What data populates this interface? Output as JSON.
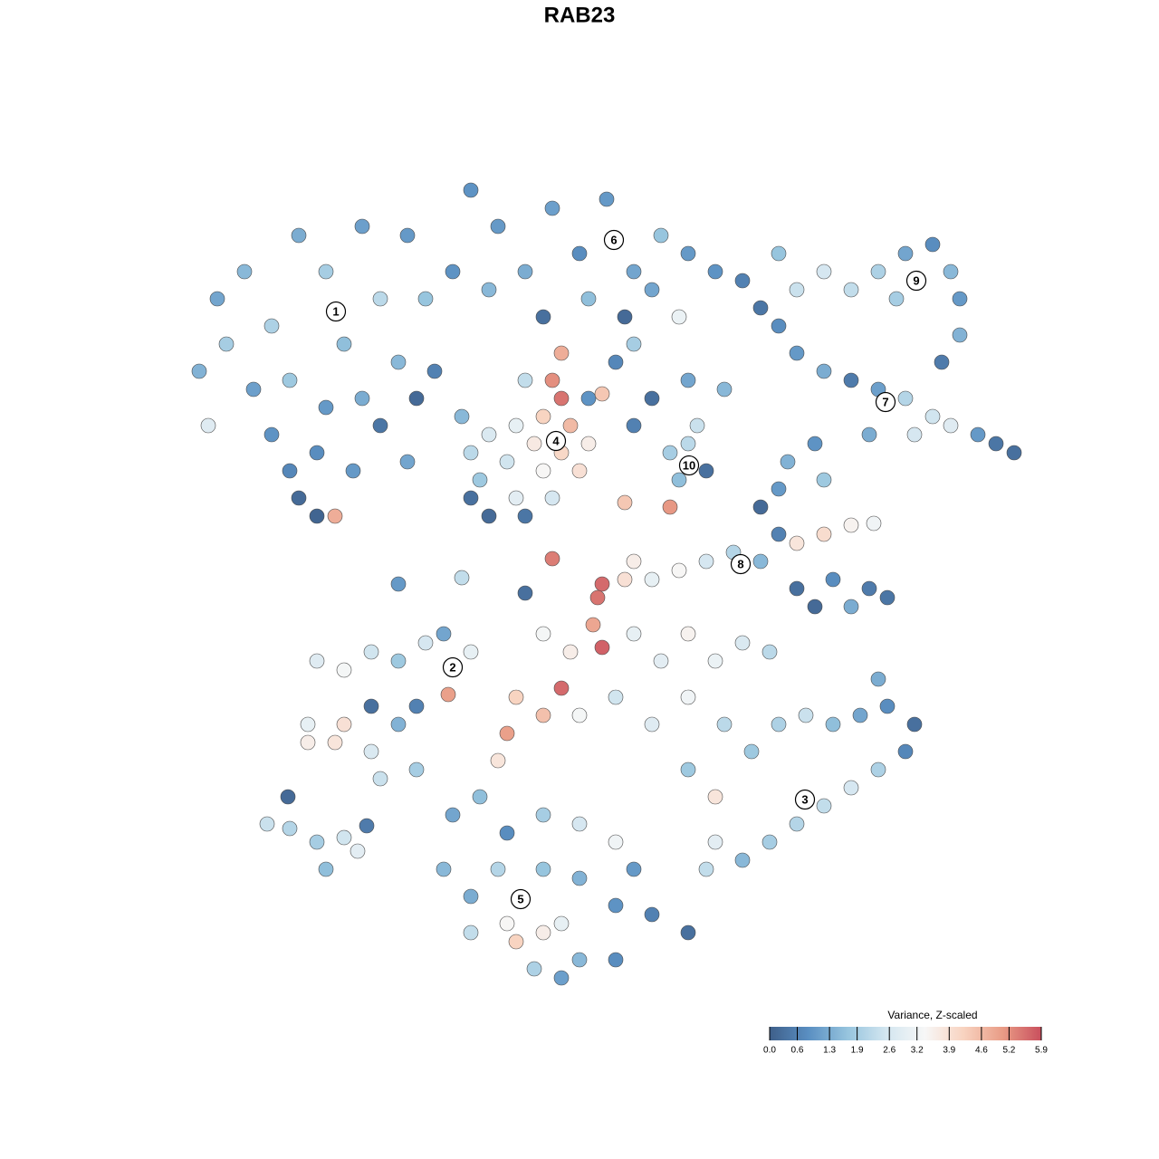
{
  "chart_data": {
    "type": "scatter",
    "title": "RAB23",
    "xlim": [
      0,
      100
    ],
    "ylim": [
      0,
      100
    ],
    "x": [
      7,
      9,
      12,
      15,
      18,
      21,
      23,
      25,
      27,
      30,
      32,
      35,
      13,
      17,
      21,
      25,
      15,
      20,
      24,
      18,
      20,
      22,
      8,
      29,
      33,
      31,
      27,
      17,
      10,
      30,
      37,
      40,
      43,
      46,
      49,
      52,
      55,
      58,
      61,
      64,
      67,
      39,
      45,
      50,
      54,
      57,
      60,
      53,
      55,
      69,
      73,
      76,
      79,
      82,
      85,
      88,
      90,
      91,
      91,
      89,
      84,
      71,
      71,
      73,
      76,
      79,
      82,
      85,
      88,
      90,
      93,
      95,
      97,
      86,
      81,
      75,
      72,
      76,
      65,
      61,
      46,
      47,
      45,
      48,
      44,
      47,
      49,
      45,
      42,
      50,
      41,
      39,
      37,
      38,
      42,
      46,
      37,
      39,
      43,
      50,
      51.5,
      36,
      47,
      43,
      59,
      61,
      63,
      60,
      62,
      55,
      57,
      59,
      54,
      55,
      57,
      60,
      63,
      66,
      69,
      71,
      73,
      76,
      79,
      81.5,
      73,
      75,
      77,
      79,
      81,
      83,
      69,
      71,
      54,
      51.5,
      46,
      51,
      50.5,
      43,
      29,
      36,
      45,
      48,
      51.5,
      55,
      58,
      61,
      64,
      67,
      70,
      47,
      45,
      42,
      41,
      40,
      49,
      53,
      57,
      61,
      20,
      23,
      26,
      29,
      32,
      34,
      37,
      34.5,
      19,
      22,
      19,
      23,
      26,
      29,
      31,
      26,
      27,
      31,
      14.5,
      17,
      20,
      23,
      21,
      24.5,
      16.8,
      25.5,
      65,
      68,
      71,
      74,
      77,
      80,
      83,
      86,
      85,
      82,
      79,
      76,
      73,
      70,
      67,
      64,
      64,
      63,
      82,
      61,
      35,
      38,
      41,
      45,
      49,
      53,
      55,
      34,
      37,
      40,
      45,
      49,
      53,
      57,
      61,
      37,
      41,
      42,
      45,
      47,
      44,
      49,
      53,
      47
    ],
    "y": [
      74,
      82,
      85,
      79,
      89,
      85,
      77,
      90,
      82,
      89,
      82,
      85,
      72,
      73,
      70,
      71,
      67,
      65,
      63,
      60,
      58,
      58,
      68,
      75,
      74,
      71,
      68,
      63,
      77,
      64,
      94,
      90,
      85,
      92,
      87,
      93,
      85,
      89,
      87,
      85,
      84,
      83,
      80,
      82,
      80,
      83,
      80,
      75,
      77,
      81,
      83,
      85,
      83,
      85,
      87,
      88,
      85,
      82,
      78,
      75,
      82,
      87,
      79,
      76,
      74,
      73,
      72,
      71,
      69,
      68,
      67,
      66,
      65,
      67,
      67,
      66,
      64,
      62,
      72,
      73,
      73,
      71,
      69,
      68,
      66,
      65,
      63,
      63,
      68,
      66,
      64,
      67,
      65,
      62,
      60,
      60,
      60,
      58,
      58,
      71,
      71.5,
      69,
      76,
      73,
      65,
      66,
      63,
      62,
      68,
      68,
      71,
      59,
      51,
      53,
      51,
      52,
      53,
      54,
      53,
      56,
      55,
      56,
      57,
      57.2,
      50,
      48,
      51,
      48,
      50,
      49,
      59,
      61,
      59.5,
      50.5,
      53.3,
      49,
      46,
      49.5,
      50.5,
      51.2,
      45,
      43,
      43.5,
      45,
      42,
      45,
      42,
      44,
      43,
      39,
      36,
      38,
      34,
      31,
      36,
      38,
      35,
      38,
      42,
      41,
      43,
      42,
      44,
      45,
      43,
      38.3,
      35,
      33,
      33,
      35,
      32,
      35,
      37,
      37,
      29,
      30,
      24,
      23.5,
      22,
      22.5,
      19,
      21,
      27,
      23.8,
      35,
      32,
      35,
      36,
      35,
      36,
      37,
      35,
      32,
      30,
      28,
      26,
      24,
      22,
      20,
      22,
      27,
      19,
      40,
      30,
      25,
      27,
      23,
      25,
      24,
      22,
      19,
      19,
      16,
      19,
      19,
      18,
      15,
      14,
      12,
      12,
      13,
      11,
      12,
      13,
      8,
      9,
      9,
      7
    ],
    "values": [
      1.4,
      1.2,
      1.5,
      2.0,
      1.3,
      1.9,
      1.6,
      1.1,
      2.2,
      1.0,
      1.7,
      0.9,
      1.1,
      1.8,
      1.0,
      1.3,
      0.9,
      0.8,
      1.0,
      0.2,
      0.1,
      4.8,
      2.8,
      1.5,
      0.6,
      0.2,
      0.4,
      0.7,
      1.9,
      1.2,
      0.9,
      1.0,
      1.3,
      1.1,
      0.8,
      1.0,
      1.2,
      1.7,
      1.0,
      0.9,
      0.6,
      1.5,
      0.3,
      1.6,
      0.2,
      1.2,
      3.1,
      0.7,
      1.9,
      0.4,
      2.4,
      2.6,
      2.3,
      2.0,
      1.2,
      0.8,
      1.5,
      1.0,
      1.4,
      0.5,
      1.9,
      1.7,
      0.8,
      1.0,
      1.3,
      0.5,
      1.1,
      2.1,
      2.5,
      2.8,
      1.0,
      0.4,
      0.3,
      2.6,
      1.3,
      0.9,
      1.4,
      1.8,
      1.5,
      1.2,
      5.2,
      5.5,
      4.2,
      4.6,
      3.7,
      4.1,
      3.9,
      3.4,
      3.0,
      3.6,
      2.5,
      2.7,
      2.2,
      1.8,
      2.9,
      2.6,
      0.3,
      0.2,
      0.4,
      0.9,
      4.4,
      1.5,
      4.8,
      2.3,
      1.9,
      2.2,
      0.3,
      1.6,
      2.4,
      0.6,
      0.3,
      5.1,
      3.9,
      3.6,
      3.0,
      3.4,
      2.6,
      2.1,
      1.5,
      0.6,
      3.8,
      4.0,
      3.5,
      3.2,
      0.3,
      0.2,
      0.8,
      1.3,
      0.5,
      0.4,
      0.2,
      1.0,
      4.4,
      5.6,
      5.4,
      5.5,
      4.9,
      0.3,
      1.0,
      2.3,
      3.3,
      3.6,
      5.7,
      3.0,
      2.9,
      3.5,
      3.1,
      2.7,
      2.2,
      5.6,
      4.5,
      4.2,
      5.0,
      3.8,
      3.3,
      2.5,
      2.8,
      3.2,
      2.8,
      3.3,
      2.5,
      1.8,
      2.6,
      1.2,
      3.0,
      5.0,
      3.0,
      3.8,
      3.6,
      3.9,
      2.7,
      1.4,
      0.6,
      0.3,
      2.4,
      1.9,
      2.4,
      2.1,
      1.9,
      2.5,
      1.6,
      2.9,
      0.2,
      0.5,
      2.2,
      1.8,
      2.0,
      2.4,
      1.6,
      1.2,
      0.8,
      0.3,
      0.7,
      2.0,
      2.6,
      2.3,
      2.1,
      1.9,
      1.5,
      2.9,
      3.8,
      2.3,
      1.3,
      1.8,
      1.2,
      1.6,
      0.8,
      1.9,
      2.6,
      3.2,
      1.0,
      1.5,
      1.3,
      2.1,
      1.7,
      1.4,
      0.9,
      0.6,
      0.3,
      2.3,
      3.4,
      4.2,
      3.6,
      3.0,
      2.0,
      1.5,
      0.8,
      1.1
    ],
    "clusters": [
      {
        "label": "1",
        "x": 22.1,
        "y": 80.6
      },
      {
        "label": "2",
        "x": 35,
        "y": 41.3
      },
      {
        "label": "3",
        "x": 73.9,
        "y": 26.7
      },
      {
        "label": "4",
        "x": 46.4,
        "y": 66.3
      },
      {
        "label": "5",
        "x": 42.5,
        "y": 15.7
      },
      {
        "label": "6",
        "x": 52.8,
        "y": 88.5
      },
      {
        "label": "7",
        "x": 82.8,
        "y": 70.6
      },
      {
        "label": "8",
        "x": 66.8,
        "y": 52.7
      },
      {
        "label": "9",
        "x": 86.2,
        "y": 84
      },
      {
        "label": "10",
        "x": 61.1,
        "y": 63.6
      }
    ],
    "colorbar": {
      "title": "Variance, Z-scaled",
      "lim": [
        0,
        5.9
      ],
      "ticks": [
        {
          "value": 0,
          "label": "0.0"
        },
        0.6,
        1.3,
        1.9,
        2.6,
        3.2,
        3.9,
        4.6,
        5.2,
        5.9
      ],
      "colors": [
        "#3e5f8a",
        "#5a8fc2",
        "#96c4de",
        "#d3e6f0",
        "#f7f7f7",
        "#f8d3c0",
        "#e99c86",
        "#c94f5d"
      ]
    }
  }
}
